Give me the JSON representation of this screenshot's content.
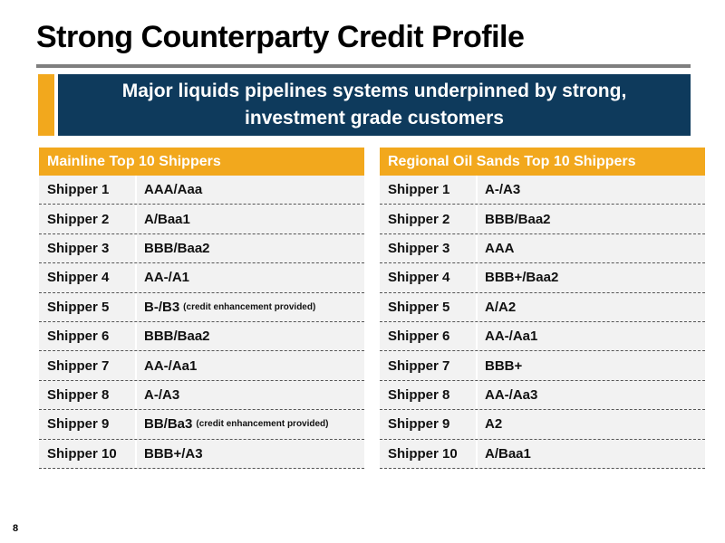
{
  "slide": {
    "title": "Strong Counterparty Credit Profile",
    "banner": {
      "line1": "Major liquids pipelines systems underpinned by strong,",
      "line2": "investment grade customers"
    },
    "page_number": "8"
  },
  "colors": {
    "accent": "#f2a81d",
    "banner_bg": "#0e3a5c",
    "row_bg": "#f2f2f2",
    "rule": "#7f7f7f"
  },
  "mainline": {
    "header": "Mainline Top 10 Shippers",
    "rows": [
      {
        "name": "Shipper 1",
        "rating": "AAA/Aaa",
        "note": ""
      },
      {
        "name": "Shipper 2",
        "rating": "A/Baa1",
        "note": ""
      },
      {
        "name": "Shipper 3",
        "rating": "BBB/Baa2",
        "note": ""
      },
      {
        "name": "Shipper 4",
        "rating": "AA-/A1",
        "note": ""
      },
      {
        "name": "Shipper 5",
        "rating": "B-/B3",
        "note": "(credit enhancement provided)"
      },
      {
        "name": "Shipper 6",
        "rating": "BBB/Baa2",
        "note": ""
      },
      {
        "name": "Shipper 7",
        "rating": "AA-/Aa1",
        "note": ""
      },
      {
        "name": "Shipper 8",
        "rating": "A-/A3",
        "note": ""
      },
      {
        "name": "Shipper 9",
        "rating": "BB/Ba3",
        "note": "(credit enhancement provided)"
      },
      {
        "name": "Shipper 10",
        "rating": "BBB+/A3",
        "note": ""
      }
    ]
  },
  "regional": {
    "header": "Regional Oil Sands Top 10 Shippers",
    "rows": [
      {
        "name": "Shipper 1",
        "rating": "A-/A3",
        "note": ""
      },
      {
        "name": "Shipper 2",
        "rating": "BBB/Baa2",
        "note": ""
      },
      {
        "name": "Shipper 3",
        "rating": "AAA",
        "note": ""
      },
      {
        "name": "Shipper 4",
        "rating": "BBB+/Baa2",
        "note": ""
      },
      {
        "name": "Shipper 5",
        "rating": "A/A2",
        "note": ""
      },
      {
        "name": "Shipper 6",
        "rating": "AA-/Aa1",
        "note": ""
      },
      {
        "name": "Shipper 7",
        "rating": "BBB+",
        "note": ""
      },
      {
        "name": "Shipper 8",
        "rating": "AA-/Aa3",
        "note": ""
      },
      {
        "name": "Shipper 9",
        "rating": "A2",
        "note": ""
      },
      {
        "name": "Shipper 10",
        "rating": "A/Baa1",
        "note": ""
      }
    ]
  }
}
